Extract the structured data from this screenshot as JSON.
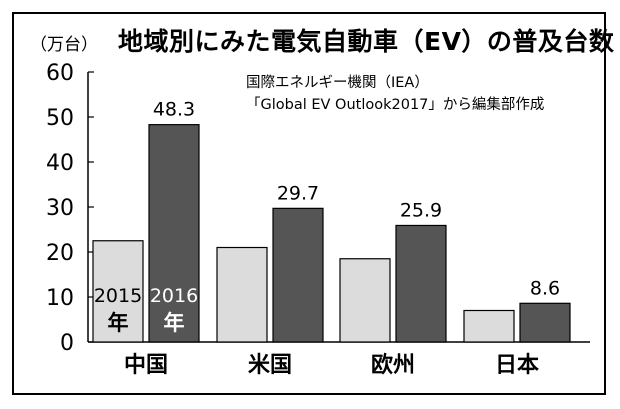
{
  "unit_label": "（万台）",
  "source": {
    "line1": "国際エネルギー機関（IEA）",
    "line2": "「Global EV Outlook2017」から編集部作成"
  },
  "chart_data": {
    "type": "bar",
    "title": "地域別にみた電気自動車（EV）の普及台数",
    "categories": [
      "中国",
      "米国",
      "欧州",
      "日本"
    ],
    "series": [
      {
        "name": "2015年",
        "values": [
          22.5,
          21,
          18.5,
          7
        ],
        "color": "#dcdcdc",
        "text_color": "#000000"
      },
      {
        "name": "2016年",
        "values": [
          48.3,
          29.7,
          25.9,
          8.6
        ],
        "color": "#555555",
        "text_color": "#ffffff"
      }
    ],
    "data_labels": [
      "",
      "",
      "",
      "",
      "48.3",
      "29.7",
      "25.9",
      "8.6"
    ],
    "yticks": [
      0,
      10,
      20,
      30,
      40,
      50,
      60
    ],
    "ylim": [
      0,
      60
    ],
    "ylabel": "（万台）",
    "xlabel": "",
    "grid": false,
    "legend": "inside-first-bars",
    "legend_year_chars": [
      [
        "2015",
        "年"
      ],
      [
        "2016",
        "年"
      ]
    ]
  }
}
